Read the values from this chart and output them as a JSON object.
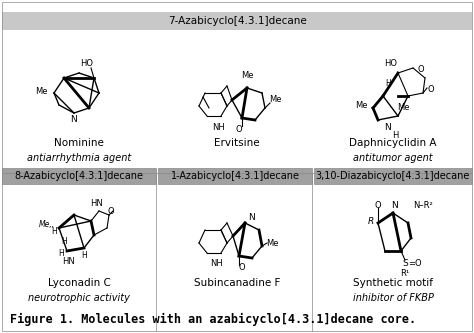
{
  "bg_color": "#ffffff",
  "header1_bg": "#c8c8c8",
  "header2_bg": "#a0a0a0",
  "header1_text": "7-Azabicyclo[4.3.1]decane",
  "header2a_text": "8-Azabicyclo[4.3.1]decane",
  "header2b_text": "1-Azabicyclo[4.3.1]decane",
  "header2c_text": "3,10-Diazabicyclo[4.3.1]decane",
  "mol1_name": "Nominine",
  "mol1_activity": "antiarrhythmia agent",
  "mol2_name": "Ervitsine",
  "mol2_activity": "",
  "mol3_name": "Daphnicyclidin A",
  "mol3_activity": "antitumor agent",
  "mol4_name": "Lyconadin C",
  "mol4_activity": "neurotrophic activity",
  "mol5_name": "Subincanadine F",
  "mol5_activity": "",
  "mol6_name": "Synthetic motif",
  "mol6_activity": "inhibitor of FKBP",
  "figure_caption": "Figure 1. Molecules with an azabicyclo[4.3.1]decane core.",
  "header_fontsize": 7.5,
  "name_fontsize": 7.5,
  "activity_fontsize": 7.0,
  "caption_fontsize": 8.5,
  "fig_width": 4.74,
  "fig_height": 3.33,
  "dpi": 100
}
